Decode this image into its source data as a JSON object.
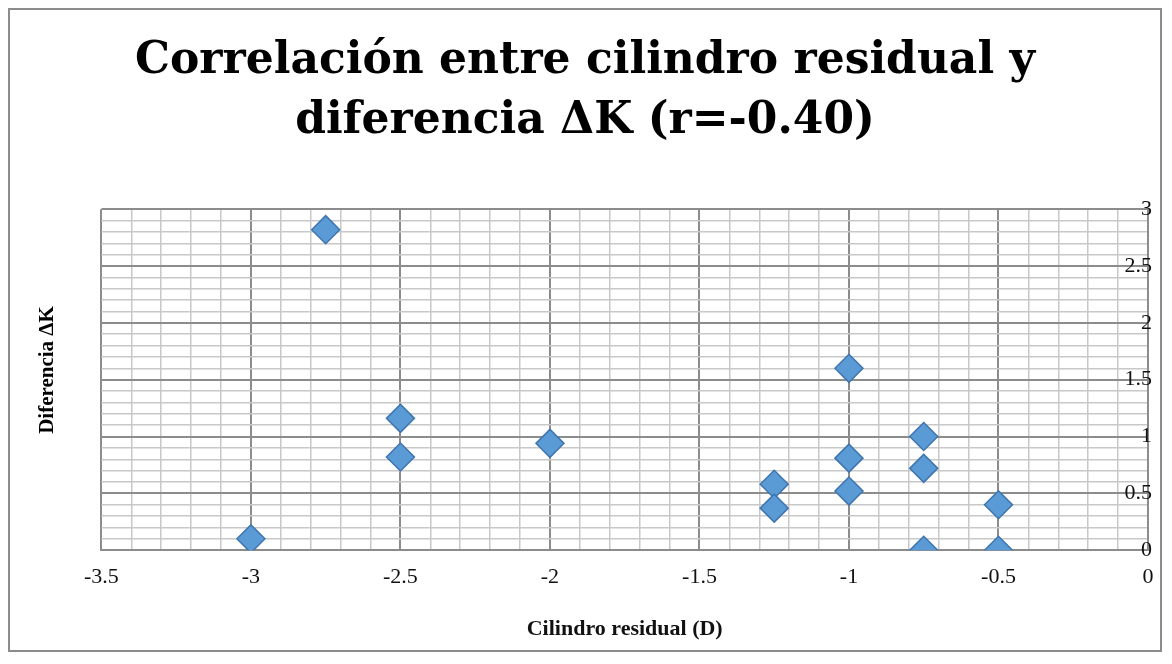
{
  "chart_data": {
    "type": "scatter",
    "title": "Correlación entre cilindro residual y diferencia ΔK (r=-0.40)",
    "xlabel": "Cilindro residual (D)",
    "ylabel": "Diferencia ΔK",
    "series": [
      {
        "color": "#5b9bd5",
        "x": [
          -3,
          -2.75,
          -2.5,
          -2.5,
          -2,
          -1.25,
          -1.25,
          -1,
          -1,
          -1,
          -0.75,
          -0.75,
          -0.75,
          -0.5,
          -0.5
        ],
        "values": [
          0.1,
          2.82,
          1.16,
          0.82,
          0.94,
          0.58,
          0.37,
          1.6,
          0.81,
          0.52,
          1.0,
          0.72,
          0.0,
          0.4,
          0.0
        ]
      }
    ],
    "xlim": [
      -3.5,
      0
    ],
    "ylim": [
      0,
      3
    ],
    "xticks": [
      -3.5,
      {
        "value": -3.4,
        "label": null
      },
      {
        "value": -3.3,
        "label": null
      },
      {
        "value": -3.2,
        "label": null
      },
      {
        "value": -3.1,
        "label": null
      },
      -3,
      {
        "value": -2.9,
        "label": null
      },
      {
        "value": -2.8,
        "label": null
      },
      {
        "value": -2.7,
        "label": null
      },
      {
        "value": -2.6,
        "label": null
      },
      -2.5,
      {
        "value": -2.4,
        "label": null
      },
      {
        "value": -2.3,
        "label": null
      },
      {
        "value": -2.2,
        "label": null
      },
      {
        "value": -2.1,
        "label": null
      },
      -2,
      {
        "value": -1.9,
        "label": null
      },
      {
        "value": -1.8,
        "label": null
      },
      {
        "value": -1.7,
        "label": null
      },
      {
        "value": -1.6,
        "label": null
      },
      -1.5,
      {
        "value": -1.4,
        "label": null
      },
      {
        "value": -1.3,
        "label": null
      },
      {
        "value": -1.2,
        "label": null
      },
      {
        "value": -1.1,
        "label": null
      },
      -1,
      {
        "value": -0.9,
        "label": null
      },
      {
        "value": -0.8,
        "label": null
      },
      {
        "value": -0.7,
        "label": null
      },
      {
        "value": -0.6,
        "label": null
      },
      -0.5,
      {
        "value": -0.4,
        "label": null
      },
      {
        "value": -0.3,
        "label": null
      },
      {
        "value": -0.2,
        "label": null
      },
      {
        "value": -0.1,
        "label": null
      },
      0
    ],
    "yticks": [
      0,
      {
        "value": 0.1,
        "label": null
      },
      {
        "value": 0.2,
        "label": null
      },
      {
        "value": 0.3,
        "label": null
      },
      {
        "value": 0.4,
        "label": null
      },
      0.5,
      {
        "value": 0.6,
        "label": null
      },
      {
        "value": 0.7,
        "label": null
      },
      {
        "value": 0.8,
        "label": null
      },
      {
        "value": 0.9,
        "label": null
      },
      1,
      {
        "value": 1.1,
        "label": null
      },
      {
        "value": 1.2,
        "label": null
      },
      {
        "value": 1.3,
        "label": null
      },
      {
        "value": 1.4,
        "label": null
      },
      1.5,
      {
        "value": 1.6,
        "label": null
      },
      {
        "value": 1.7,
        "label": null
      },
      {
        "value": 1.8,
        "label": null
      },
      {
        "value": 1.9,
        "label": null
      },
      2,
      {
        "value": 2.1,
        "label": null
      },
      {
        "value": 2.2,
        "label": null
      },
      {
        "value": 2.3,
        "label": null
      },
      {
        "value": 2.4,
        "label": null
      },
      2.5,
      {
        "value": 2.6,
        "label": null
      },
      {
        "value": 2.7,
        "label": null
      },
      {
        "value": 2.8,
        "label": null
      },
      {
        "value": 2.9,
        "label": null
      },
      3
    ],
    "grid": true,
    "legend": false,
    "marker": "diamond"
  }
}
